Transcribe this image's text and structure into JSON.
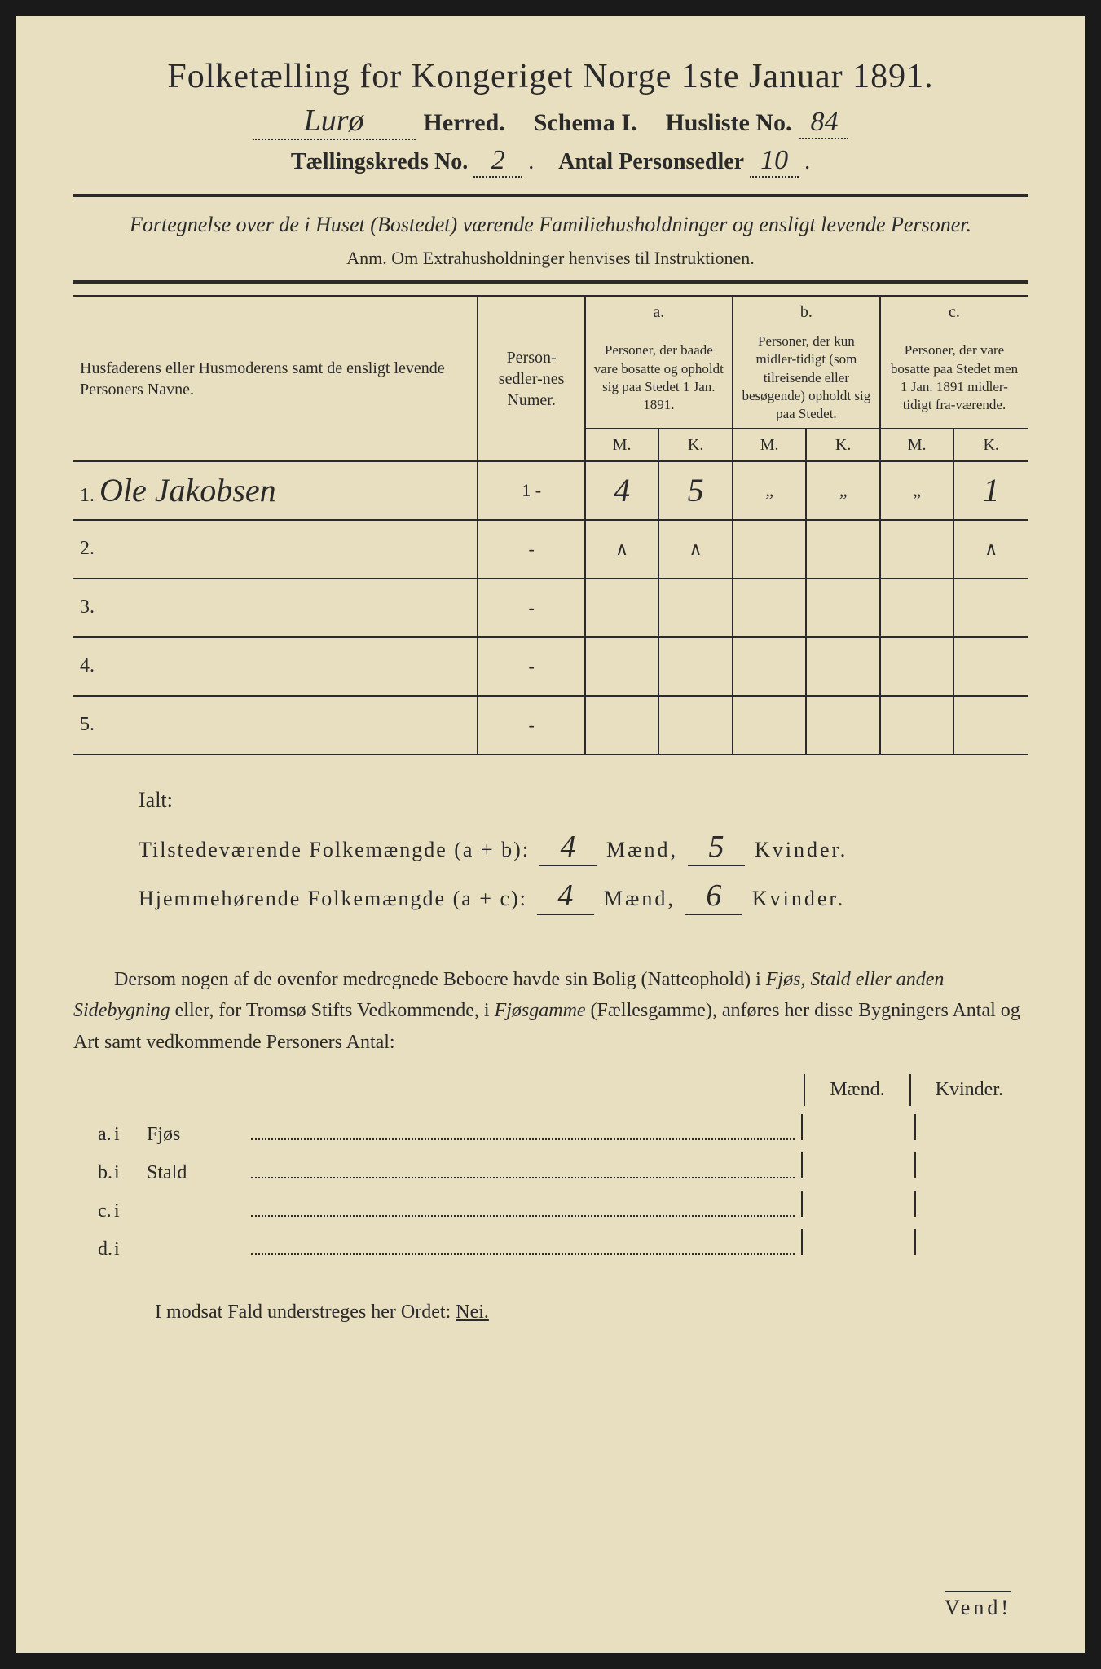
{
  "title": "Folketælling for Kongeriget Norge 1ste Januar 1891.",
  "herred_value": "Lurø",
  "herred_label": "Herred.",
  "schema_label": "Schema I.",
  "husliste_label": "Husliste No.",
  "husliste_no": "84",
  "kreds_label": "Tællingskreds No.",
  "kreds_no": "2",
  "antal_label": "Antal Personsedler",
  "antal_val": "10",
  "subtitle": "Fortegnelse over de i Huset (Bostedet) værende Familiehusholdninger og ensligt levende Personer.",
  "anm": "Anm. Om Extrahusholdninger henvises til Instruktionen.",
  "col_name": "Husfaderens eller Husmoderens samt de ensligt levende Personers Navne.",
  "col_num": "Person-sedler-nes Numer.",
  "col_a_top": "a.",
  "col_a": "Personer, der baade vare bosatte og opholdt sig paa Stedet 1 Jan. 1891.",
  "col_b_top": "b.",
  "col_b": "Personer, der kun midler-tidigt (som tilreisende eller besøgende) opholdt sig paa Stedet.",
  "col_c_top": "c.",
  "col_c": "Personer, der vare bosatte paa Stedet men 1 Jan. 1891 midler-tidigt fra-værende.",
  "m": "M.",
  "k": "K.",
  "rows": [
    {
      "n": "1.",
      "name": "Ole Jakobsen",
      "num": "1 -",
      "aM": "4",
      "aK": "5",
      "bM": "„",
      "bK": "„",
      "cM": "„",
      "cK": "1"
    },
    {
      "n": "2.",
      "name": "",
      "num": "-",
      "aM": "∧",
      "aK": "∧",
      "bM": "",
      "bK": "",
      "cM": "",
      "cK": "∧"
    },
    {
      "n": "3.",
      "name": "",
      "num": "-",
      "aM": "",
      "aK": "",
      "bM": "",
      "bK": "",
      "cM": "",
      "cK": ""
    },
    {
      "n": "4.",
      "name": "",
      "num": "-",
      "aM": "",
      "aK": "",
      "bM": "",
      "bK": "",
      "cM": "",
      "cK": ""
    },
    {
      "n": "5.",
      "name": "",
      "num": "-",
      "aM": "",
      "aK": "",
      "bM": "",
      "bK": "",
      "cM": "",
      "cK": ""
    }
  ],
  "ialt": "Ialt:",
  "tilstede_label": "Tilstedeværende Folkemængde (a + b):",
  "hjemme_label": "Hjemmehørende Folkemængde (a + c):",
  "maend": "Mænd,",
  "kvinder": "Kvinder.",
  "tilstede_m": "4",
  "tilstede_k": "5",
  "hjemme_m": "4",
  "hjemme_k": "6",
  "para1": "Dersom nogen af de ovenfor medregnede Beboere havde sin Bolig (Natteophold) i ",
  "para_it1": "Fjøs, Stald eller anden Sidebygning",
  "para2": " eller, for Tromsø Stifts Vedkommende, i ",
  "para_it2": "Fjøsgamme",
  "para3": " (Fællesgamme), anføres her disse Bygningers Antal og Art samt vedkommende Personers Antal:",
  "maend_h": "Mænd.",
  "kvinder_h": "Kvinder.",
  "mk_rows": [
    {
      "a": "a.",
      "i": "i",
      "cat": "Fjøs"
    },
    {
      "a": "b.",
      "i": "i",
      "cat": "Stald"
    },
    {
      "a": "c.",
      "i": "i",
      "cat": ""
    },
    {
      "a": "d.",
      "i": "i",
      "cat": ""
    }
  ],
  "nei_line": "I modsat Fald understreges her Ordet: ",
  "nei": "Nei.",
  "vend": "Vend!"
}
